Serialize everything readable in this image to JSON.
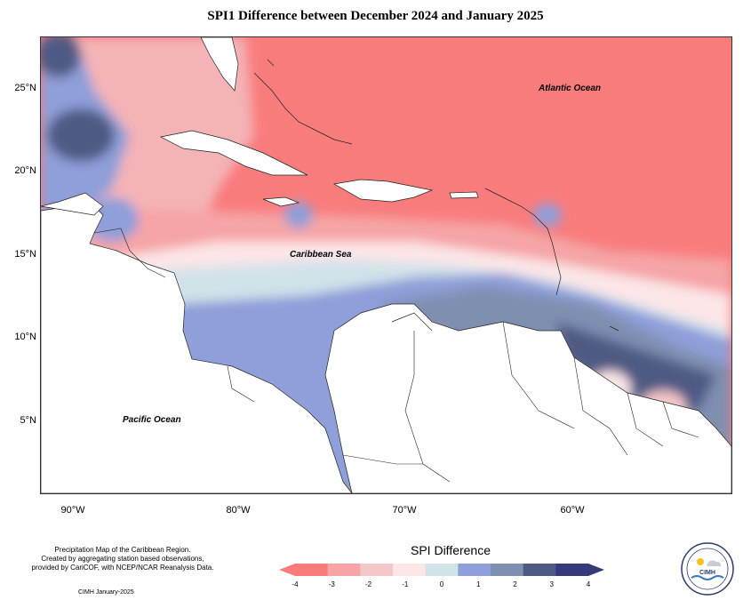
{
  "title": "SPI1 Difference between December 2024 and January 2025",
  "map": {
    "ocean_labels": {
      "atlantic": "Atlantic Ocean",
      "caribbean": "Caribbean Sea",
      "pacific": "Pacific Ocean"
    },
    "lat_ticks": [
      "25°N",
      "20°N",
      "15°N",
      "10°N",
      "5°N"
    ],
    "lon_ticks": [
      "90°W",
      "80°W",
      "70°W",
      "60°W"
    ],
    "extent": {
      "lon": [
        -92,
        -50
      ],
      "lat": [
        1.5,
        29
      ]
    }
  },
  "legend": {
    "title": "SPI Difference",
    "labels": [
      "-4",
      "-3",
      "-2",
      "-1",
      "0",
      "1",
      "2",
      "3",
      "4"
    ],
    "colors": [
      "#f97c7d",
      "#f6a4a6",
      "#f4c7c9",
      "#fce6e8",
      "#d2e2e9",
      "#8e9fd9",
      "#7f8fb0",
      "#4f5a84",
      "#343a7a"
    ]
  },
  "notes": {
    "lines": [
      "Precipitation Map of the Caribbean Region.",
      "Created by aggregating station based observations,",
      "provided by CariCOF, with NCEP/NCAR Reanalysis Data."
    ],
    "credit": "CIMH January-2025"
  },
  "logo": {
    "text": "CIMH"
  }
}
